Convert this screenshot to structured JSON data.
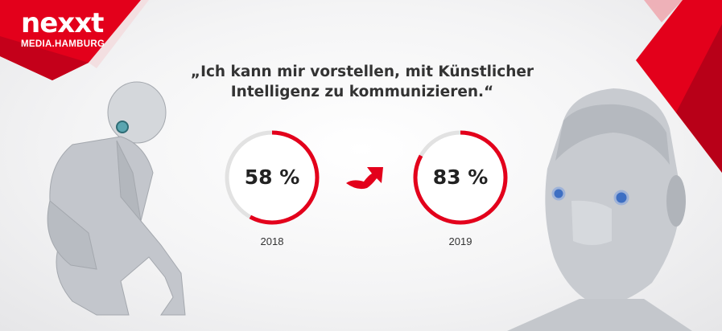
{
  "brand": {
    "name": "nexxt",
    "subtitle": "MEDIA.HAMBURG",
    "accent": "#e3001b"
  },
  "quote": {
    "line1": "„Ich kann mir vorstellen, mit Künstlicher",
    "line2": "Intelligenz zu kommunizieren.“"
  },
  "chart_data": {
    "type": "pie",
    "title": "„Ich kann mir vorstellen, mit Künstlicher Intelligenz zu kommunizieren.“",
    "categories": [
      "2018",
      "2019"
    ],
    "values": [
      58,
      83
    ],
    "labels": [
      "58 %",
      "83 %"
    ],
    "max": 100,
    "colors": {
      "filled": "#e3001b",
      "remainder": "#e2e2e2"
    }
  },
  "arrow_icon": "arrow-up-right-icon"
}
